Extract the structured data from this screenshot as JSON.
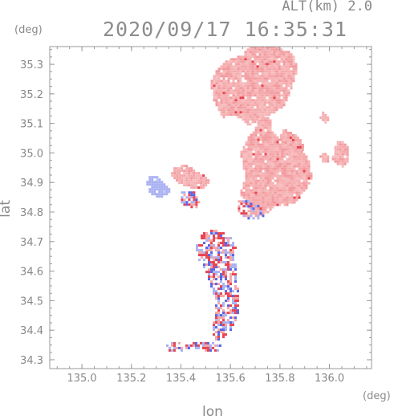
{
  "header": {
    "alt_label": "ALT(km)",
    "alt_value": "2.0",
    "timestamp": "2020/09/17 16:35:31"
  },
  "axes": {
    "x_label": "lon",
    "y_label": "lat",
    "x_unit": "(deg)",
    "y_unit": "(deg)"
  },
  "chart_data": {
    "type": "heatmap",
    "xlabel": "lon",
    "ylabel": "lat",
    "xlim": [
      134.87,
      136.17
    ],
    "ylim": [
      34.27,
      35.36
    ],
    "x_ticks": [
      135.0,
      135.2,
      135.4,
      135.6,
      135.8,
      136.0
    ],
    "x_tick_labels": [
      "135.0",
      "135.2",
      "135.4",
      "135.6",
      "135.8",
      "136.0"
    ],
    "y_ticks": [
      34.3,
      34.4,
      34.5,
      34.6,
      34.7,
      34.8,
      34.9,
      35.0,
      35.1,
      35.2,
      35.3
    ],
    "y_tick_labels": [
      "34.3",
      "34.4",
      "34.5",
      "34.6",
      "34.7",
      "34.8",
      "34.9",
      "35.0",
      "35.1",
      "35.2",
      "35.3"
    ],
    "colors": {
      "positive": "#f4a6a8",
      "negative": "#a9b1f2",
      "strong_positive": "#e8434f",
      "strong_negative": "#5964e6"
    },
    "regions": [
      {
        "sign": "positive",
        "polygon": [
          [
            135.68,
            35.37
          ],
          [
            135.74,
            35.37
          ],
          [
            135.8,
            35.36
          ],
          [
            135.86,
            35.33
          ],
          [
            135.87,
            35.28
          ],
          [
            135.85,
            35.22
          ],
          [
            135.82,
            35.16
          ],
          [
            135.77,
            35.13
          ],
          [
            135.72,
            35.12
          ],
          [
            135.68,
            35.09
          ],
          [
            135.65,
            35.11
          ],
          [
            135.61,
            35.13
          ],
          [
            135.57,
            35.12
          ],
          [
            135.53,
            35.18
          ],
          [
            135.52,
            35.24
          ],
          [
            135.55,
            35.29
          ],
          [
            135.6,
            35.32
          ],
          [
            135.65,
            35.33
          ]
        ]
      },
      {
        "sign": "positive",
        "polygon": [
          [
            135.72,
            35.13
          ],
          [
            135.76,
            35.12
          ],
          [
            135.77,
            35.07
          ],
          [
            135.82,
            35.04
          ],
          [
            135.87,
            35.02
          ],
          [
            135.9,
            35.0
          ],
          [
            135.92,
            34.97
          ],
          [
            135.93,
            34.92
          ],
          [
            135.91,
            34.88
          ],
          [
            135.88,
            34.85
          ],
          [
            135.86,
            34.83
          ],
          [
            135.82,
            34.82
          ],
          [
            135.78,
            34.82
          ],
          [
            135.74,
            34.79
          ],
          [
            135.7,
            34.79
          ],
          [
            135.66,
            34.82
          ],
          [
            135.64,
            34.86
          ],
          [
            135.65,
            34.89
          ],
          [
            135.66,
            34.92
          ],
          [
            135.65,
            34.96
          ],
          [
            135.64,
            35.0
          ],
          [
            135.66,
            35.04
          ],
          [
            135.69,
            35.07
          ]
        ]
      },
      {
        "sign": "positive",
        "polygon": [
          [
            135.37,
            34.95
          ],
          [
            135.42,
            34.96
          ],
          [
            135.46,
            34.94
          ],
          [
            135.5,
            34.92
          ],
          [
            135.52,
            34.9
          ],
          [
            135.49,
            34.88
          ],
          [
            135.44,
            34.88
          ],
          [
            135.39,
            34.9
          ],
          [
            135.36,
            34.92
          ]
        ]
      },
      {
        "sign": "positive",
        "polygon": [
          [
            135.81,
            35.08
          ],
          [
            135.85,
            35.07
          ],
          [
            135.89,
            35.04
          ],
          [
            135.9,
            35.01
          ],
          [
            135.87,
            35.0
          ],
          [
            135.83,
            35.02
          ],
          [
            135.8,
            35.05
          ]
        ]
      },
      {
        "sign": "positive",
        "polygon": [
          [
            136.03,
            35.04
          ],
          [
            136.06,
            35.04
          ],
          [
            136.08,
            35.01
          ],
          [
            136.08,
            34.98
          ],
          [
            136.06,
            34.95
          ],
          [
            136.03,
            34.96
          ],
          [
            136.01,
            34.98
          ],
          [
            136.02,
            35.01
          ]
        ]
      },
      {
        "sign": "positive",
        "polygon": [
          [
            135.98,
            35.0
          ],
          [
            136.0,
            34.99
          ],
          [
            136.0,
            34.97
          ],
          [
            135.97,
            34.97
          ],
          [
            135.96,
            34.99
          ]
        ]
      },
      {
        "sign": "positive",
        "polygon": [
          [
            135.97,
            35.14
          ],
          [
            135.99,
            35.13
          ],
          [
            136.0,
            35.11
          ],
          [
            135.98,
            35.1
          ],
          [
            135.96,
            35.12
          ]
        ]
      },
      {
        "sign": "negative",
        "polygon": [
          [
            135.28,
            34.93
          ],
          [
            135.31,
            34.92
          ],
          [
            135.33,
            34.9
          ],
          [
            135.36,
            34.88
          ],
          [
            135.35,
            34.86
          ],
          [
            135.32,
            34.85
          ],
          [
            135.29,
            34.85
          ],
          [
            135.27,
            34.87
          ],
          [
            135.26,
            34.9
          ]
        ]
      },
      {
        "sign": "mixed",
        "polygon": [
          [
            135.49,
            34.73
          ],
          [
            135.53,
            34.74
          ],
          [
            135.57,
            34.73
          ],
          [
            135.6,
            34.72
          ],
          [
            135.62,
            34.69
          ],
          [
            135.63,
            34.65
          ],
          [
            135.62,
            34.6
          ],
          [
            135.63,
            34.55
          ],
          [
            135.64,
            34.5
          ],
          [
            135.63,
            34.45
          ],
          [
            135.61,
            34.41
          ],
          [
            135.58,
            34.38
          ],
          [
            135.56,
            34.36
          ],
          [
            135.53,
            34.37
          ],
          [
            135.52,
            34.41
          ],
          [
            135.54,
            34.45
          ],
          [
            135.54,
            34.5
          ],
          [
            135.52,
            34.55
          ],
          [
            135.5,
            34.6
          ],
          [
            135.47,
            34.63
          ],
          [
            135.46,
            34.67
          ],
          [
            135.47,
            34.71
          ]
        ]
      },
      {
        "sign": "mixed",
        "polygon": [
          [
            135.34,
            34.35
          ],
          [
            135.38,
            34.36
          ],
          [
            135.42,
            34.35
          ],
          [
            135.47,
            34.36
          ],
          [
            135.52,
            34.36
          ],
          [
            135.56,
            34.35
          ],
          [
            135.55,
            34.33
          ],
          [
            135.5,
            34.33
          ],
          [
            135.45,
            34.34
          ],
          [
            135.4,
            34.33
          ],
          [
            135.35,
            34.33
          ]
        ]
      },
      {
        "sign": "mixed",
        "polygon": [
          [
            135.63,
            34.84
          ],
          [
            135.68,
            34.84
          ],
          [
            135.72,
            34.82
          ],
          [
            135.74,
            34.79
          ],
          [
            135.7,
            34.77
          ],
          [
            135.66,
            34.78
          ],
          [
            135.63,
            34.8
          ]
        ]
      },
      {
        "sign": "mixed",
        "polygon": [
          [
            135.4,
            34.87
          ],
          [
            135.45,
            34.87
          ],
          [
            135.48,
            34.84
          ],
          [
            135.46,
            34.81
          ],
          [
            135.42,
            34.82
          ],
          [
            135.39,
            34.84
          ]
        ]
      }
    ]
  }
}
